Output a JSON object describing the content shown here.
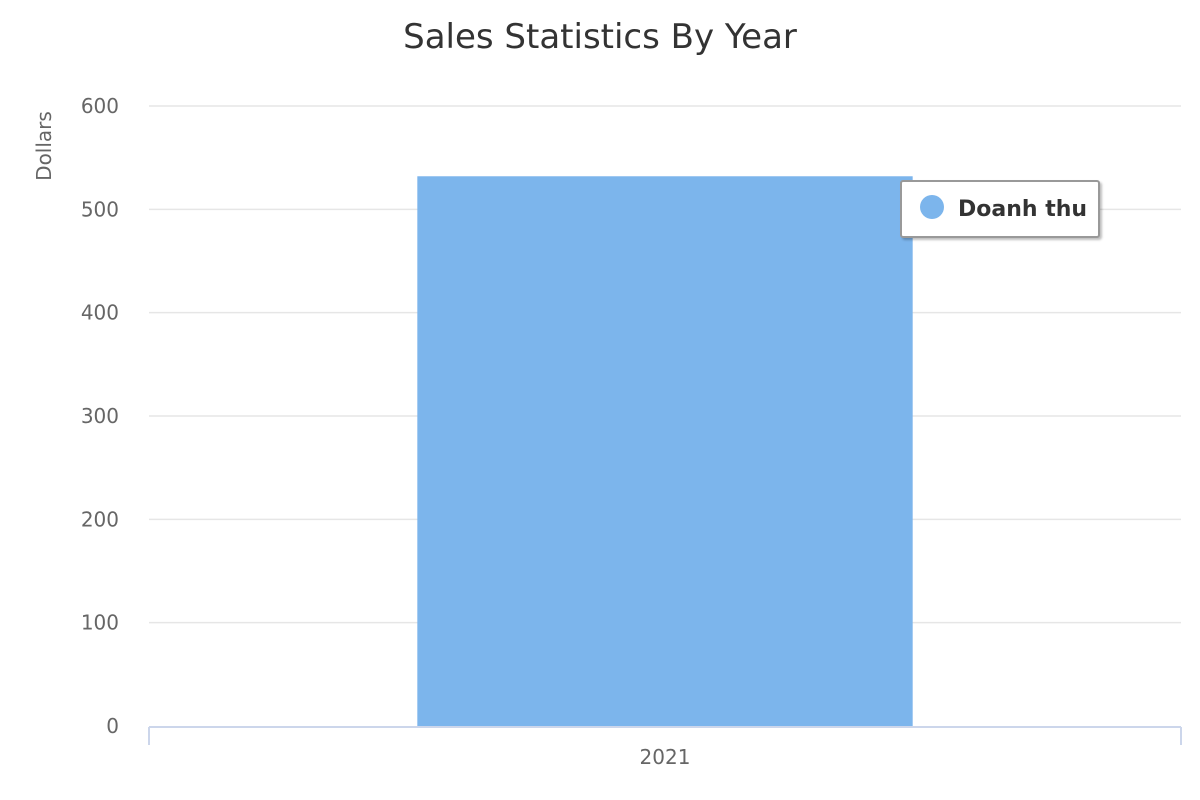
{
  "chart_data": {
    "type": "bar",
    "title": "Sales Statistics By Year",
    "ylabel": "Dollars",
    "xlabel": "",
    "categories": [
      "2021"
    ],
    "series": [
      {
        "name": "Doanh thu",
        "values": [
          532
        ],
        "color": "#7cb5ec"
      }
    ],
    "ylim": [
      0,
      600
    ],
    "yticks": [
      0,
      100,
      200,
      300,
      400,
      500,
      600
    ],
    "grid": true,
    "legend_position": "top-right"
  }
}
